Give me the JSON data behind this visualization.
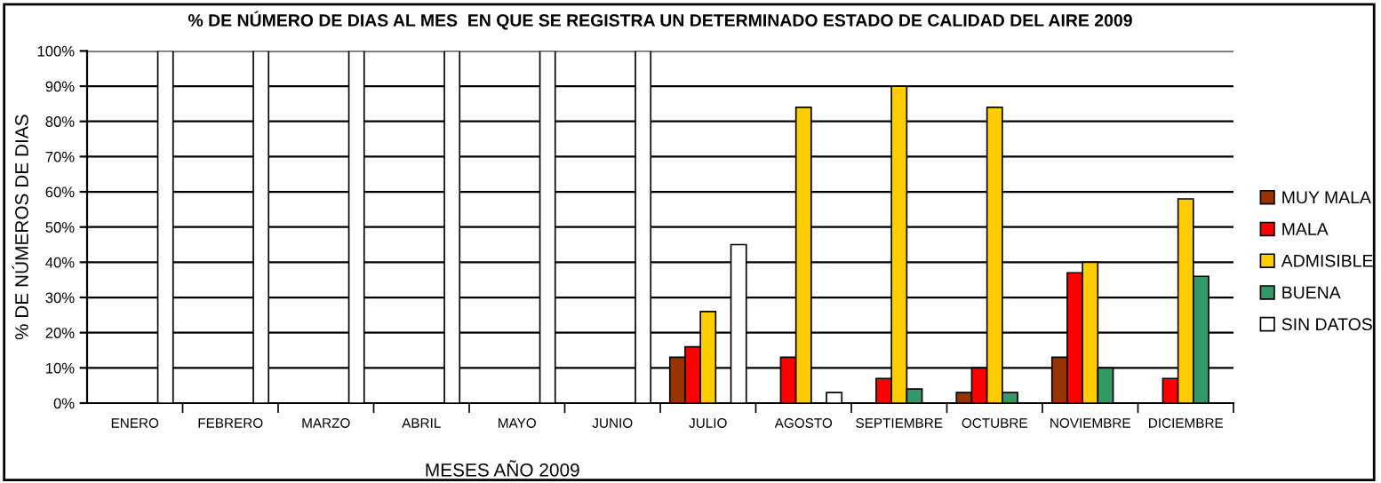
{
  "chart_data": {
    "type": "bar",
    "title": "% DE NÚMERO DE DIAS AL MES  EN QUE SE REGISTRA UN DETERMINADO ESTADO DE CALIDAD DEL AIRE 2009",
    "xlabel": "MESES AÑO 2009",
    "ylabel": "% DE NÚMEROS DE DIAS",
    "categories": [
      "ENERO",
      "FEBRERO",
      "MARZO",
      "ABRIL",
      "MAYO",
      "JUNIO",
      "JULIO",
      "AGOSTO",
      "SEPTIEMBRE",
      "OCTUBRE",
      "NOVIEMBRE",
      "DICIEMBRE"
    ],
    "series": [
      {
        "name": "MUY MALA",
        "color": "#993300",
        "values": [
          null,
          null,
          null,
          null,
          null,
          null,
          13,
          null,
          null,
          3,
          13,
          null
        ]
      },
      {
        "name": "MALA",
        "color": "#ff0000",
        "values": [
          null,
          null,
          null,
          null,
          null,
          null,
          16,
          13,
          7,
          10,
          37,
          7
        ]
      },
      {
        "name": "ADMISIBLE",
        "color": "#ffcc00",
        "values": [
          null,
          null,
          null,
          null,
          null,
          null,
          26,
          84,
          90,
          84,
          40,
          58
        ]
      },
      {
        "name": "BUENA",
        "color": "#339966",
        "values": [
          null,
          null,
          null,
          null,
          null,
          null,
          null,
          null,
          4,
          3,
          10,
          36
        ]
      },
      {
        "name": "SIN DATOS",
        "color": "#ffffff",
        "values": [
          100,
          100,
          100,
          100,
          100,
          100,
          45,
          3,
          null,
          null,
          null,
          null
        ]
      }
    ],
    "ylim": [
      0,
      100
    ],
    "yticks": [
      {
        "value": 0,
        "label": "0%"
      },
      {
        "value": 10,
        "label": "10%"
      },
      {
        "value": 20,
        "label": "20%"
      },
      {
        "value": 30,
        "label": "30%"
      },
      {
        "value": 40,
        "label": "40%"
      },
      {
        "value": 50,
        "label": "50%"
      },
      {
        "value": 60,
        "label": "60%"
      },
      {
        "value": 70,
        "label": "70%"
      },
      {
        "value": 80,
        "label": "80%"
      },
      {
        "value": 90,
        "label": "90%"
      },
      {
        "value": 100,
        "label": "100%"
      }
    ],
    "grid": "y",
    "legend": "right"
  }
}
